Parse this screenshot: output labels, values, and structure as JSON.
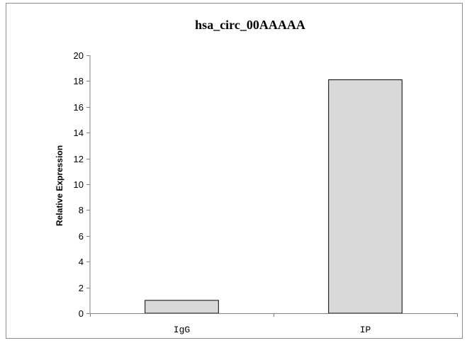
{
  "chart_data": {
    "type": "bar",
    "title": "hsa_circ_00AAAAA",
    "xlabel": "",
    "ylabel": "Relative Expression",
    "categories": [
      "IgG",
      "IP"
    ],
    "values": [
      1.0,
      18.1
    ],
    "ylim": [
      0,
      20
    ],
    "yticks": [
      0,
      2,
      4,
      6,
      8,
      10,
      12,
      14,
      16,
      18,
      20
    ],
    "grid": false,
    "legend": "none",
    "colors": {
      "bar_fill": "#d9d9d9",
      "bar_stroke": "#000000",
      "axis": "#808080",
      "frame": "#8c8c8c"
    }
  }
}
